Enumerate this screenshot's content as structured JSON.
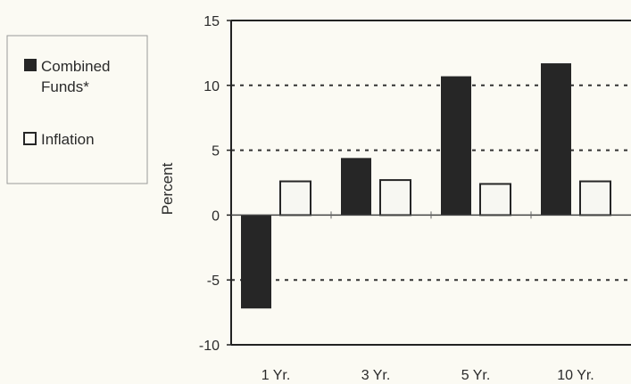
{
  "chart_data": {
    "type": "bar",
    "categories": [
      "1 Yr.",
      "3 Yr.",
      "5 Yr.",
      "10 Yr."
    ],
    "series": [
      {
        "name": "Combined Funds*",
        "values": [
          -7.2,
          4.4,
          10.7,
          11.7
        ],
        "color": "#262626"
      },
      {
        "name": "Inflation",
        "values": [
          2.6,
          2.7,
          2.4,
          2.6
        ],
        "color": "#f7f7f2"
      }
    ],
    "ylabel": "Percent",
    "ylim": [
      -10,
      15
    ],
    "yticks": [
      15,
      10,
      5,
      0,
      -5,
      -10
    ],
    "grid": true,
    "legend_position": "left"
  },
  "legend": {
    "line1": "Combined",
    "line2": "Funds*",
    "inflation": "Inflation"
  }
}
